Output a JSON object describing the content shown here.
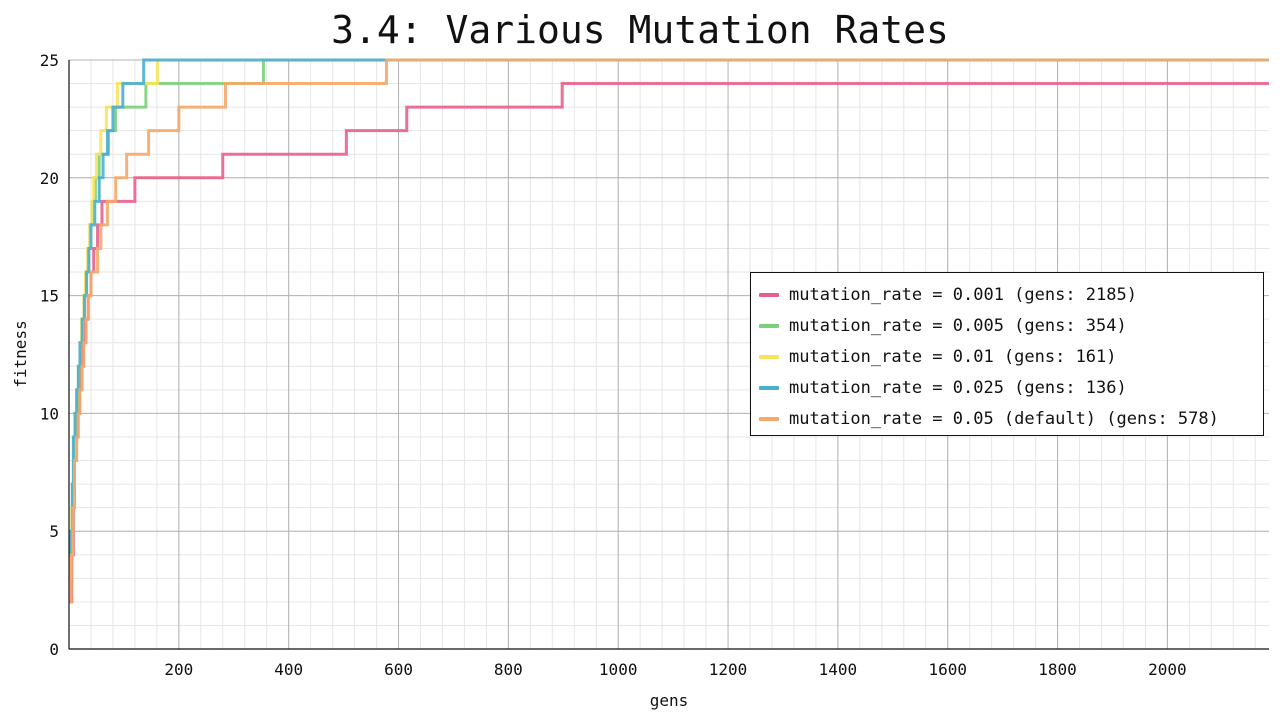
{
  "chart_data": {
    "type": "line",
    "title": "3.4: Various Mutation Rates",
    "xlabel": "gens",
    "ylabel": "fitness",
    "xlim": [
      0,
      2185
    ],
    "ylim": [
      0,
      25
    ],
    "x_ticks": [
      200,
      400,
      600,
      800,
      1000,
      1200,
      1400,
      1600,
      1800,
      2000
    ],
    "y_ticks": [
      0,
      5,
      10,
      15,
      20,
      25
    ],
    "grid": true,
    "legend_position": "right",
    "series": [
      {
        "name": "mutation_rate = 0.001 (gens: 2185)",
        "color": "#e8608a",
        "points": [
          [
            0,
            2
          ],
          [
            5,
            4
          ],
          [
            8,
            6
          ],
          [
            10,
            8
          ],
          [
            13,
            9
          ],
          [
            16,
            10
          ],
          [
            19,
            11
          ],
          [
            22,
            12
          ],
          [
            26,
            13
          ],
          [
            30,
            14
          ],
          [
            35,
            15
          ],
          [
            40,
            16
          ],
          [
            45,
            17
          ],
          [
            52,
            18
          ],
          [
            60,
            19
          ],
          [
            120,
            20
          ],
          [
            280,
            21
          ],
          [
            505,
            22
          ],
          [
            615,
            23
          ],
          [
            898,
            24
          ],
          [
            2185,
            24
          ]
        ]
      },
      {
        "name": "mutation_rate = 0.005 (gens: 354)",
        "color": "#7ccf7c",
        "points": [
          [
            0,
            4
          ],
          [
            4,
            5
          ],
          [
            7,
            7
          ],
          [
            9,
            9
          ],
          [
            12,
            10
          ],
          [
            15,
            11
          ],
          [
            18,
            12
          ],
          [
            21,
            13
          ],
          [
            24,
            14
          ],
          [
            28,
            15
          ],
          [
            31,
            16
          ],
          [
            35,
            17
          ],
          [
            38,
            18
          ],
          [
            42,
            19
          ],
          [
            48,
            20
          ],
          [
            55,
            21
          ],
          [
            72,
            22
          ],
          [
            85,
            23
          ],
          [
            140,
            24
          ],
          [
            354,
            25
          ],
          [
            2185,
            25
          ]
        ]
      },
      {
        "name": "mutation_rate = 0.01 (gens: 161)",
        "color": "#f7e35a",
        "points": [
          [
            0,
            3
          ],
          [
            3,
            4
          ],
          [
            5,
            6
          ],
          [
            8,
            8
          ],
          [
            11,
            10
          ],
          [
            14,
            11
          ],
          [
            17,
            12
          ],
          [
            20,
            13
          ],
          [
            23,
            14
          ],
          [
            27,
            15
          ],
          [
            30,
            16
          ],
          [
            34,
            17
          ],
          [
            38,
            18
          ],
          [
            42,
            19
          ],
          [
            45,
            20
          ],
          [
            50,
            21
          ],
          [
            58,
            22
          ],
          [
            68,
            23
          ],
          [
            88,
            24
          ],
          [
            161,
            25
          ],
          [
            2185,
            25
          ]
        ]
      },
      {
        "name": "mutation_rate = 0.025 (gens: 136)",
        "color": "#4aaed0",
        "points": [
          [
            0,
            4
          ],
          [
            3,
            5
          ],
          [
            6,
            7
          ],
          [
            8,
            9
          ],
          [
            11,
            10
          ],
          [
            14,
            11
          ],
          [
            17,
            12
          ],
          [
            20,
            13
          ],
          [
            24,
            14
          ],
          [
            28,
            15
          ],
          [
            32,
            16
          ],
          [
            36,
            17
          ],
          [
            40,
            18
          ],
          [
            47,
            19
          ],
          [
            55,
            20
          ],
          [
            62,
            21
          ],
          [
            70,
            22
          ],
          [
            80,
            23
          ],
          [
            98,
            24
          ],
          [
            136,
            25
          ],
          [
            2185,
            25
          ]
        ]
      },
      {
        "name": "mutation_rate = 0.05 (default) (gens: 578)",
        "color": "#f5a86a",
        "points": [
          [
            0,
            2
          ],
          [
            4,
            4
          ],
          [
            7,
            6
          ],
          [
            10,
            8
          ],
          [
            14,
            9
          ],
          [
            17,
            10
          ],
          [
            20,
            11
          ],
          [
            24,
            12
          ],
          [
            27,
            13
          ],
          [
            31,
            14
          ],
          [
            35,
            15
          ],
          [
            40,
            16
          ],
          [
            52,
            17
          ],
          [
            58,
            18
          ],
          [
            70,
            19
          ],
          [
            85,
            20
          ],
          [
            105,
            21
          ],
          [
            145,
            22
          ],
          [
            200,
            23
          ],
          [
            285,
            24
          ],
          [
            578,
            25
          ],
          [
            2185,
            25
          ]
        ]
      }
    ]
  },
  "legend": {
    "items": [
      {
        "label": "mutation_rate = 0.001 (gens: 2185)",
        "color": "#e8608a"
      },
      {
        "label": "mutation_rate = 0.005 (gens: 354)",
        "color": "#7ccf7c"
      },
      {
        "label": "mutation_rate = 0.01 (gens: 161)",
        "color": "#f7e35a"
      },
      {
        "label": "mutation_rate = 0.025 (gens: 136)",
        "color": "#4aaed0"
      },
      {
        "label": "mutation_rate = 0.05 (default) (gens: 578)",
        "color": "#f5a86a"
      }
    ]
  }
}
